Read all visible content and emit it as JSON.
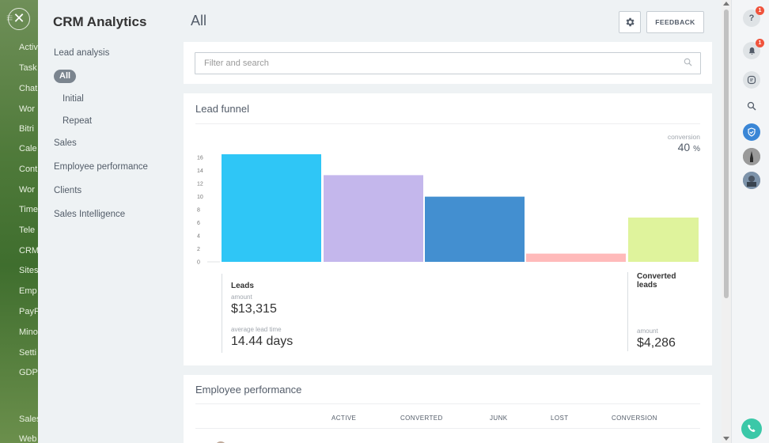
{
  "background_menu": {
    "items": [
      "Activ",
      "Task",
      "Chat",
      "Wor",
      "Bitri",
      "Cale",
      "Cont",
      "Wor",
      "Time",
      "Tele",
      "CRM",
      "Sites",
      "Emp",
      "PayP",
      "Mino",
      "Setti",
      "GDP",
      "Sales",
      "Web"
    ]
  },
  "nav": {
    "title": "CRM Analytics",
    "items": {
      "lead_analysis": "Lead analysis",
      "all": "All",
      "initial": "Initial",
      "repeat": "Repeat",
      "sales": "Sales",
      "employee_performance": "Employee performance",
      "clients": "Clients",
      "sales_intelligence": "Sales Intelligence"
    }
  },
  "header": {
    "title": "All",
    "feedback_label": "FEEDBACK",
    "settings_icon": "gear-icon"
  },
  "filter": {
    "placeholder": "Filter and search",
    "icon": "search-icon"
  },
  "funnel": {
    "title": "Lead funnel",
    "conversion_label": "conversion",
    "conversion_value": "40",
    "conversion_unit": "%",
    "leads": {
      "title": "Leads",
      "amount_label": "amount",
      "amount_value": "$13,315",
      "avg_time_label": "average lead time",
      "avg_time_value": "14.44 days"
    },
    "converted": {
      "title": "Converted leads",
      "amount_label": "amount",
      "amount_value": "$4,286"
    }
  },
  "chart_data": {
    "type": "bar",
    "categories": [
      "",
      "",
      "",
      "",
      ""
    ],
    "values": [
      17,
      13.7,
      10.3,
      1.3,
      7
    ],
    "colors": [
      "#2fc6f6",
      "#c4b7ec",
      "#438fd0",
      "#ffbaba",
      "#dff39c"
    ],
    "ylim": [
      0,
      17
    ],
    "yticks": [
      "0",
      "2",
      "4",
      "6",
      "8",
      "10",
      "12",
      "14",
      "16"
    ],
    "title": "",
    "xlabel": "",
    "ylabel": ""
  },
  "employee": {
    "title": "Employee performance",
    "columns": [
      "ACTIVE",
      "CONVERTED",
      "JUNK",
      "LOST",
      "CONVERSION"
    ]
  },
  "rightbar": {
    "help_badge": "1",
    "notify_badge": "1"
  },
  "colors": {
    "accent": "#2fc6f6",
    "badge": "#f0533c",
    "call": "#3bc8a8"
  }
}
